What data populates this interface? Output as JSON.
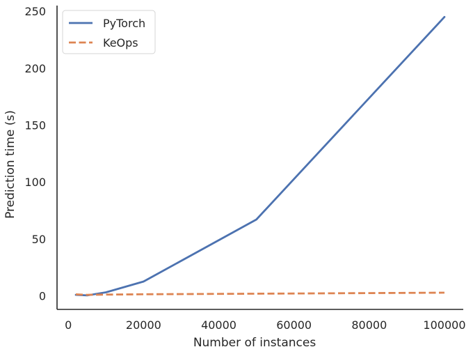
{
  "chart_data": {
    "type": "line",
    "title": "",
    "xlabel": "Number of instances",
    "ylabel": "Prediction time (s)",
    "xlim": [
      -3000,
      105000
    ],
    "ylim": [
      -12,
      255
    ],
    "xticks": [
      0,
      20000,
      40000,
      60000,
      80000,
      100000
    ],
    "xtick_labels": [
      "0",
      "20000",
      "40000",
      "60000",
      "80000",
      "100000"
    ],
    "yticks": [
      0,
      50,
      100,
      150,
      200,
      250
    ],
    "ytick_labels": [
      "0",
      "50",
      "100",
      "150",
      "200",
      "250"
    ],
    "grid": false,
    "legend_position": "top-left",
    "series": [
      {
        "name": "PyTorch",
        "color": "#4c72b0",
        "dash": "solid",
        "x": [
          2000,
          5000,
          10000,
          20000,
          50000,
          100000
        ],
        "y": [
          0.8,
          0.3,
          3.0,
          12.5,
          67,
          245
        ]
      },
      {
        "name": "KeOps",
        "color": "#dd8452",
        "dash": "dashed",
        "x": [
          2000,
          5000,
          10000,
          20000,
          50000,
          100000
        ],
        "y": [
          1.2,
          0.8,
          1.0,
          1.3,
          1.8,
          2.7
        ]
      }
    ]
  }
}
